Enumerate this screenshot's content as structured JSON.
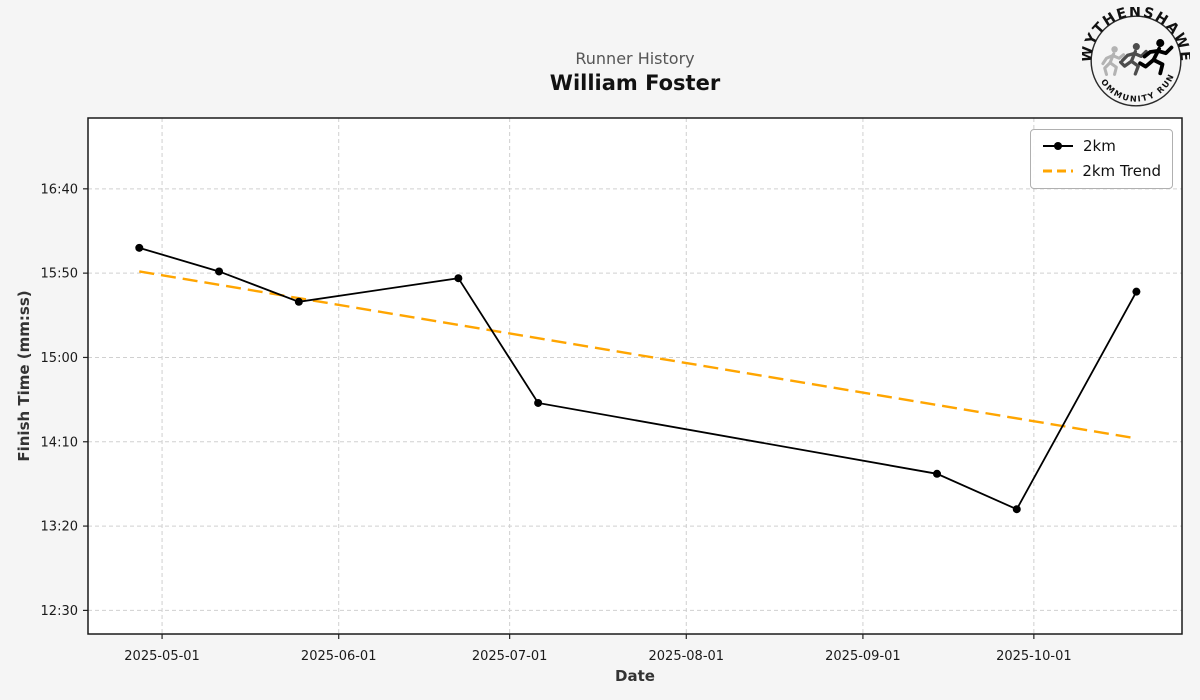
{
  "header": {
    "title": "Runner History",
    "subtitle": "William Foster"
  },
  "logo": {
    "top_text": "WYTHENSHAWE",
    "bottom_text": "COMMUNITY RUN"
  },
  "legend": {
    "items": [
      {
        "label": "2km",
        "color": "#000000",
        "style": "solid-with-marker"
      },
      {
        "label": "2km Trend",
        "color": "#FFA500",
        "style": "dashed"
      }
    ]
  },
  "axes": {
    "xlabel": "Date",
    "ylabel": "Finish Time (mm:ss)"
  },
  "chart_data": {
    "type": "line",
    "title": "Runner History",
    "subtitle": "William Foster",
    "xlabel": "Date",
    "ylabel": "Finish Time (mm:ss)",
    "grid": true,
    "legend_position": "upper right",
    "background_color": "#f5f5f5",
    "plot_background_color": "#ffffff",
    "grid_color": "#d0d0d0",
    "x_tick_labels": [
      "2025-05-01",
      "2025-06-01",
      "2025-07-01",
      "2025-08-01",
      "2025-09-01",
      "2025-10-01"
    ],
    "y_tick_labels": [
      "16:40",
      "15:50",
      "15:00",
      "14:10",
      "13:20",
      "12:30"
    ],
    "y_tick_seconds": [
      1000,
      950,
      900,
      850,
      800,
      750
    ],
    "x_domain": [
      "2025-04-18",
      "2025-10-27"
    ],
    "y_domain_seconds": [
      736,
      1042
    ],
    "series": [
      {
        "name": "2km",
        "color": "#000000",
        "marker": "circle",
        "line_style": "solid",
        "points": [
          {
            "date": "2025-04-27",
            "time": "16:05",
            "seconds": 965
          },
          {
            "date": "2025-05-11",
            "time": "15:51",
            "seconds": 951
          },
          {
            "date": "2025-05-25",
            "time": "15:33",
            "seconds": 933
          },
          {
            "date": "2025-06-22",
            "time": "15:47",
            "seconds": 947
          },
          {
            "date": "2025-07-06",
            "time": "14:33",
            "seconds": 873
          },
          {
            "date": "2025-09-14",
            "time": "13:51",
            "seconds": 831
          },
          {
            "date": "2025-09-28",
            "time": "13:30",
            "seconds": 810
          },
          {
            "date": "2025-10-19",
            "time": "15:39",
            "seconds": 939
          }
        ]
      }
    ],
    "trend": {
      "name": "2km Trend",
      "color": "#FFA500",
      "line_style": "dashed",
      "start": {
        "date": "2025-04-27",
        "time": "15:51",
        "seconds": 951
      },
      "end": {
        "date": "2025-10-19",
        "time": "14:12",
        "seconds": 852
      }
    }
  }
}
